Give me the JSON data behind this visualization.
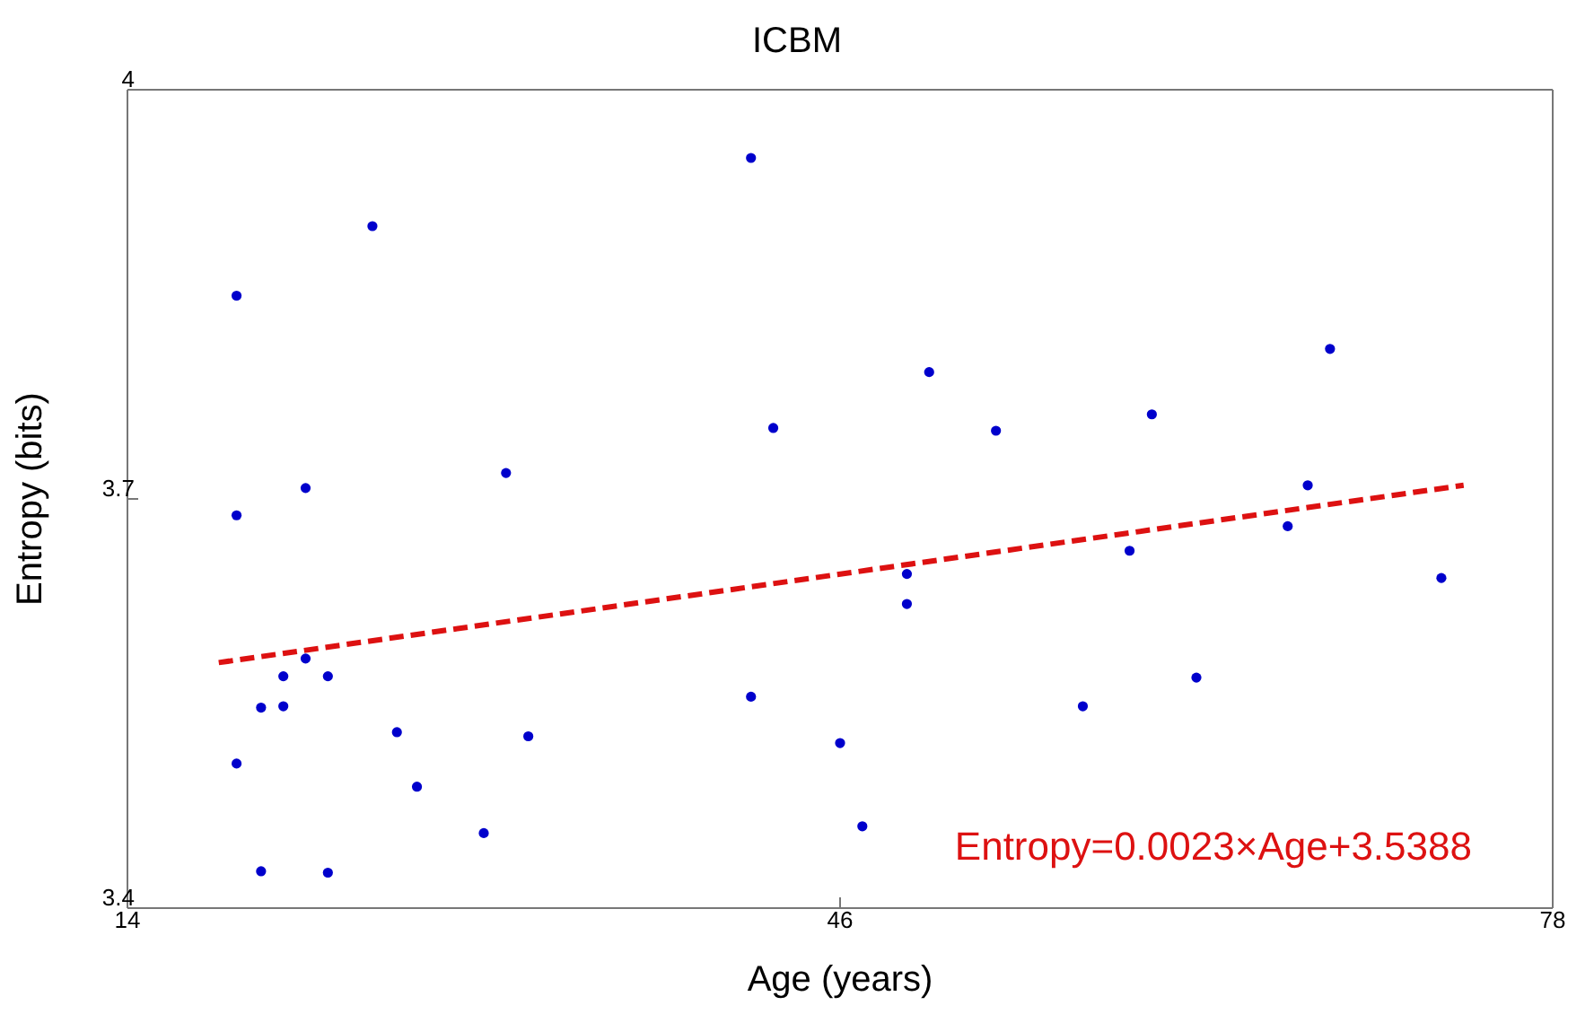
{
  "chart_data": {
    "type": "scatter",
    "title": "ICBM",
    "xlabel": "Age (years)",
    "ylabel": "Entropy (bits)",
    "xlim": [
      14,
      78
    ],
    "xticks": [
      14,
      46,
      78
    ],
    "ylim": [
      3.4,
      4
    ],
    "yticks": [
      3.4,
      3.7,
      4
    ],
    "marker": "circle",
    "series": [
      {
        "color": "#0000cc",
        "x": [
          18.9,
          18.9,
          18.9,
          20.0,
          20.0,
          21.0,
          21.0,
          22.0,
          22.0,
          23.0,
          23.0,
          25.0,
          26.1,
          27.0,
          30.0,
          31.0,
          32.0,
          42.0,
          42.0,
          43.0,
          46.0,
          47.0,
          49.0,
          49.0,
          50.0,
          53.0,
          56.9,
          59.0,
          60.0,
          62.0,
          66.1,
          67.0,
          68.0,
          73.0
        ],
        "values": [
          3.849,
          3.688,
          3.506,
          3.547,
          3.427,
          3.57,
          3.548,
          3.583,
          3.708,
          3.57,
          3.426,
          3.9,
          3.529,
          3.489,
          3.455,
          3.719,
          3.526,
          3.95,
          3.555,
          3.752,
          3.521,
          3.46,
          3.645,
          3.623,
          3.793,
          3.75,
          3.548,
          3.662,
          3.762,
          3.569,
          3.68,
          3.71,
          3.81,
          3.642
        ]
      },
      {
        "type": "line",
        "color": "#dd1111",
        "line_style": "dashed",
        "marker": "none",
        "x": [
          18.1,
          74.0
        ],
        "values": [
          3.58,
          3.71
        ]
      }
    ],
    "annotations": [
      "Entropy=0.0023×Age+3.5388"
    ]
  }
}
